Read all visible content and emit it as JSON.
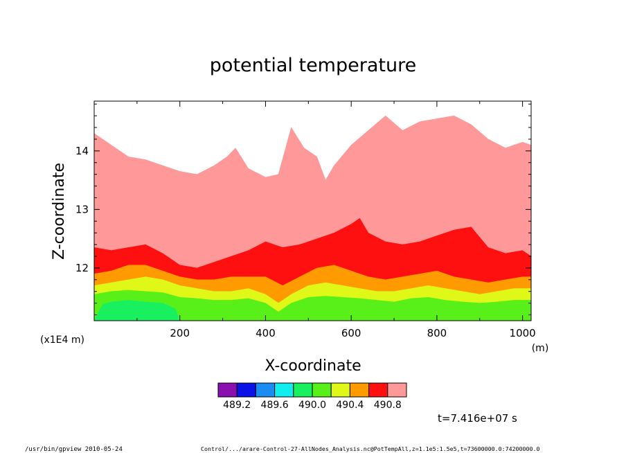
{
  "chart_data": {
    "type": "area",
    "title": "potential temperature",
    "xlabel": "X-coordinate",
    "xunit": "(m)",
    "ylabel": "Z-coordinate",
    "yunit": "(x1E4 m)",
    "xlim": [
      0,
      1020
    ],
    "ylim": [
      11.1,
      14.85
    ],
    "x_ticks": [
      200,
      400,
      600,
      800,
      1000
    ],
    "x_tick_labels": [
      "200",
      "400",
      "600",
      "800",
      "1000"
    ],
    "y_ticks": [
      12,
      13,
      14
    ],
    "y_tick_labels": [
      "12",
      "13",
      "14"
    ],
    "grid": false,
    "legend_position": "bottom-center",
    "colorbar": {
      "colors": [
        "#8a10b0",
        "#0a12e6",
        "#1a8cf2",
        "#10eef0",
        "#18f060",
        "#58f018",
        "#e0f818",
        "#ff9a00",
        "#ff1010",
        "#ff9898"
      ],
      "labels": [
        "489.2",
        "489.6",
        "490.0",
        "490.4",
        "490.8"
      ]
    },
    "series": [
      {
        "color": "#ff9898",
        "x": [
          0,
          40,
          80,
          120,
          160,
          200,
          240,
          280,
          310,
          330,
          360,
          400,
          430,
          460,
          490,
          520,
          540,
          560,
          600,
          640,
          680,
          720,
          760,
          800,
          840,
          880,
          920,
          960,
          1000,
          1020
        ],
        "y": [
          14.3,
          14.1,
          13.9,
          13.85,
          13.75,
          13.65,
          13.6,
          13.75,
          13.9,
          14.05,
          13.7,
          13.55,
          13.6,
          14.4,
          14.05,
          13.9,
          13.5,
          13.75,
          14.1,
          14.35,
          14.6,
          14.35,
          14.5,
          14.55,
          14.6,
          14.45,
          14.2,
          14.05,
          14.15,
          14.1
        ]
      },
      {
        "color": "#ff1010",
        "x": [
          0,
          40,
          80,
          120,
          160,
          200,
          240,
          280,
          320,
          360,
          400,
          440,
          480,
          520,
          560,
          600,
          620,
          640,
          680,
          720,
          760,
          800,
          840,
          880,
          920,
          960,
          1000,
          1020
        ],
        "y": [
          12.35,
          12.3,
          12.35,
          12.4,
          12.25,
          12.05,
          12.0,
          12.1,
          12.2,
          12.3,
          12.45,
          12.35,
          12.4,
          12.5,
          12.6,
          12.75,
          12.85,
          12.6,
          12.45,
          12.4,
          12.45,
          12.55,
          12.65,
          12.7,
          12.35,
          12.25,
          12.3,
          12.2
        ]
      },
      {
        "color": "#ff9a00",
        "x": [
          0,
          40,
          80,
          120,
          160,
          200,
          240,
          280,
          320,
          360,
          400,
          440,
          480,
          520,
          560,
          600,
          640,
          680,
          720,
          760,
          800,
          840,
          880,
          920,
          960,
          1000,
          1020
        ],
        "y": [
          11.9,
          11.95,
          12.05,
          12.05,
          11.95,
          11.85,
          11.8,
          11.8,
          11.85,
          11.85,
          11.85,
          11.7,
          11.85,
          12.0,
          12.05,
          11.95,
          11.85,
          11.8,
          11.85,
          11.9,
          11.95,
          11.85,
          11.8,
          11.75,
          11.8,
          11.85,
          11.85
        ]
      },
      {
        "color": "#e0f818",
        "x": [
          0,
          40,
          80,
          120,
          160,
          200,
          240,
          280,
          320,
          360,
          400,
          430,
          460,
          500,
          540,
          580,
          620,
          660,
          700,
          740,
          780,
          820,
          860,
          900,
          940,
          980,
          1020
        ],
        "y": [
          11.7,
          11.75,
          11.8,
          11.85,
          11.8,
          11.7,
          11.65,
          11.6,
          11.6,
          11.65,
          11.55,
          11.4,
          11.55,
          11.7,
          11.75,
          11.7,
          11.65,
          11.6,
          11.6,
          11.65,
          11.7,
          11.65,
          11.6,
          11.55,
          11.6,
          11.65,
          11.65
        ]
      },
      {
        "color": "#58f018",
        "x": [
          0,
          40,
          80,
          120,
          160,
          200,
          240,
          280,
          320,
          360,
          400,
          430,
          460,
          500,
          540,
          580,
          620,
          660,
          700,
          740,
          780,
          820,
          860,
          900,
          940,
          980,
          1020
        ],
        "y": [
          11.55,
          11.6,
          11.62,
          11.6,
          11.58,
          11.5,
          11.48,
          11.45,
          11.45,
          11.48,
          11.4,
          11.25,
          11.4,
          11.5,
          11.52,
          11.5,
          11.48,
          11.45,
          11.42,
          11.48,
          11.5,
          11.45,
          11.42,
          11.4,
          11.42,
          11.45,
          11.45
        ]
      },
      {
        "color": "#18f060",
        "x": [
          0,
          20,
          40,
          80,
          120,
          160,
          190,
          200
        ],
        "y": [
          11.1,
          11.38,
          11.42,
          11.45,
          11.42,
          11.4,
          11.3,
          11.1
        ]
      }
    ]
  },
  "footer": {
    "time": "t=7.416e+07 s",
    "left": "/usr/bin/gpview   2010-05-24",
    "right": "Control/.../arare-Control-27-AllNodes_Analysis.nc@PotTempAll,z=1.1e5:1.5e5,t=73600000.0:74200000.0"
  }
}
